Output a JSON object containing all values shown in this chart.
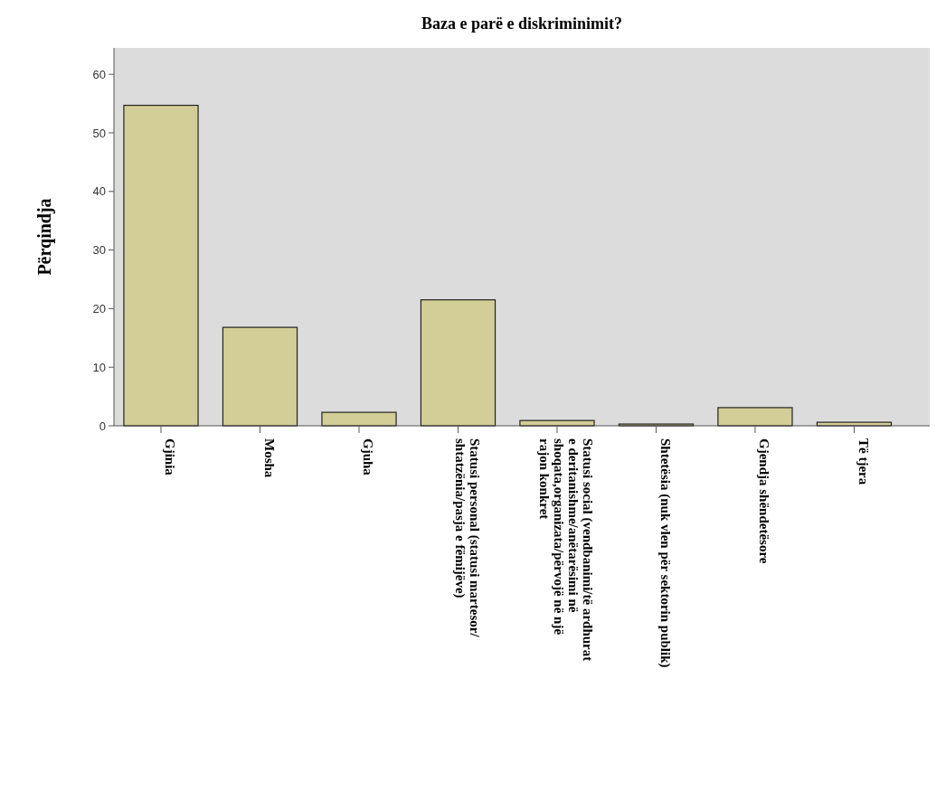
{
  "chart_data": {
    "type": "bar",
    "title": "Baza e parë e diskriminimit?",
    "ylabel": "Përqindja",
    "categories": [
      "Gjinia",
      "Mosha",
      "Gjuha",
      "Statusi personal (statusi martesor/\nshtatzënia/pasja e fëmijëve)",
      "Statusi social (vendbanimi/të ardhurat\ne deritanishme/anëtarësimi në\nshoqata,organizata/përvojë në një\nrajon konkret",
      "Shtetësia (nuk vlen për sektorin publik)",
      "Gjendja shëndetësore",
      "Të tjera"
    ],
    "values": [
      54.7,
      16.8,
      2.3,
      21.5,
      0.9,
      0.3,
      3.1,
      0.6
    ],
    "color": "#d3ce97",
    "ylim": [
      0,
      64.5
    ],
    "yticks": [
      0,
      10,
      20,
      30,
      40,
      50,
      60
    ],
    "grid": false
  }
}
